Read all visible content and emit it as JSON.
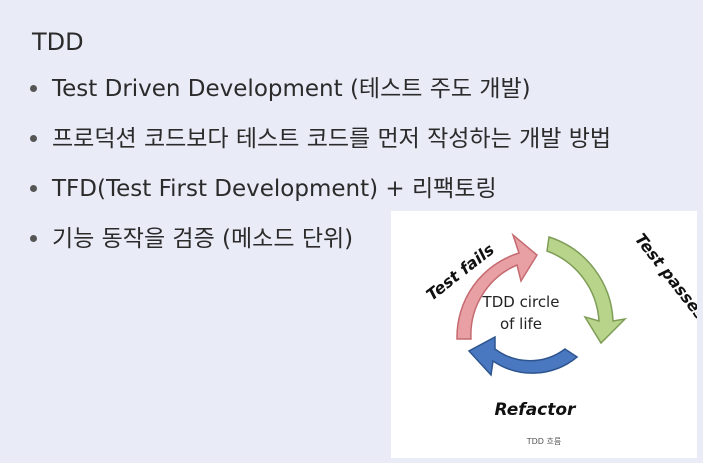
{
  "slide": {
    "title": "TDD",
    "bullets": [
      "Test Driven Development (테스트 주도 개발)",
      "프로덕션 코드보다 테스트 코드를 먼저 작성하는 개발 방법",
      "TFD(Test First Development) + 리팩토링",
      "기능 동작을 검증 (메소드 단위)"
    ]
  },
  "figure": {
    "center_line1": "TDD circle",
    "center_line2": "of life",
    "label_fails": "Test fails",
    "label_passes": "Test passes",
    "label_refactor": "Refactor",
    "caption": "TDD 흐름",
    "colors": {
      "fails_arrow": "#e8a0a4",
      "passes_arrow": "#b7d48a",
      "refactor_arrow": "#4a78c0"
    }
  }
}
